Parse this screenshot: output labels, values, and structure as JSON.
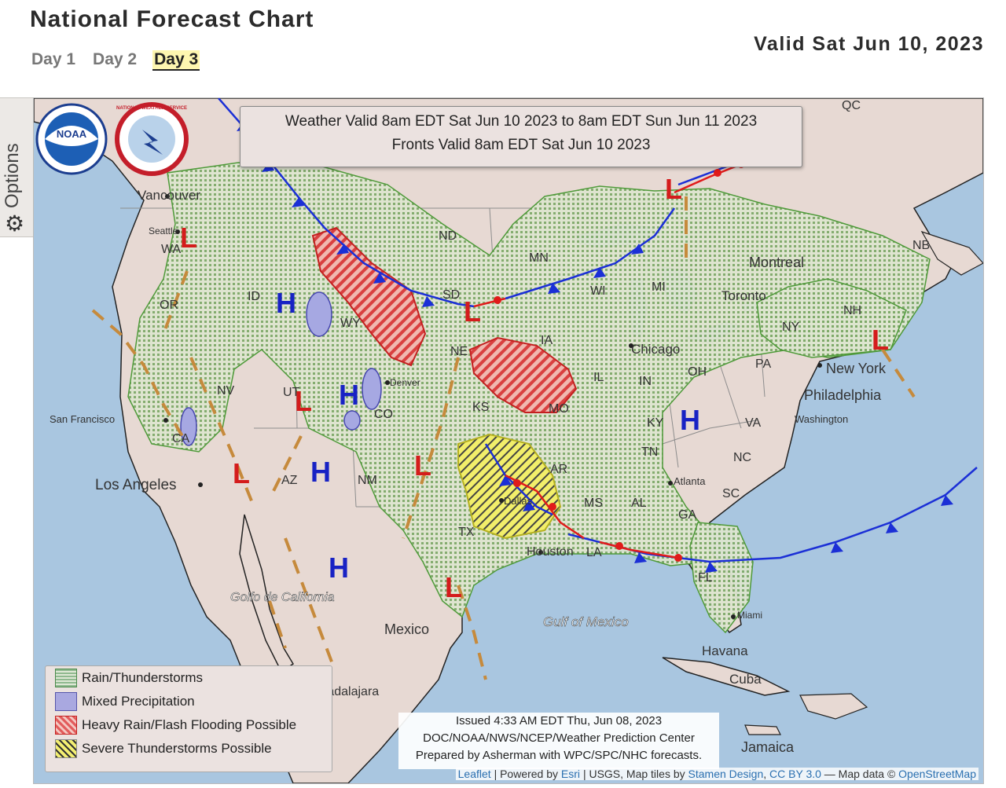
{
  "header": {
    "title": "National Forecast Chart",
    "valid_date": "Valid Sat Jun 10, 2023",
    "tabs": [
      {
        "label": "Day 1",
        "active": false
      },
      {
        "label": "Day 2",
        "active": false
      },
      {
        "label": "Day 3",
        "active": true
      }
    ]
  },
  "options": {
    "label": "Options",
    "icon": "gear-icon"
  },
  "map": {
    "valid_box": {
      "line1": "Weather Valid 8am EDT Sat Jun 10 2023 to 8am EDT Sun Jun 11 2023",
      "line2": "Fronts Valid 8am EDT Sat Jun 10 2023"
    },
    "places": {
      "vancouver": "Vancouver",
      "seattle": "Seattle",
      "wa": "WA",
      "or": "OR",
      "id": "ID",
      "nv": "NV",
      "ut": "UT",
      "az": "AZ",
      "nm": "NM",
      "co": "CO",
      "wy": "WY",
      "nd": "ND",
      "sd": "SD",
      "ne": "NE",
      "ks": "KS",
      "mn": "MN",
      "ia": "IA",
      "mo": "MO",
      "ar": "AR",
      "tx": "TX",
      "wi": "WI",
      "mi": "MI",
      "il": "IL",
      "in": "IN",
      "oh": "OH",
      "ky": "KY",
      "tn": "TN",
      "ms": "MS",
      "al": "AL",
      "ga": "GA",
      "sc": "SC",
      "nc": "NC",
      "va": "VA",
      "pa": "PA",
      "ny": "NY",
      "nh": "NH",
      "nb": "NB",
      "qc": "QC",
      "montreal": "Montreal",
      "toronto": "Toronto",
      "chicago": "Chicago",
      "new_york": "New York",
      "philadelphia": "Philadelphia",
      "washington": "Washington",
      "denver": "Denver",
      "dallas": "Dallas",
      "houston": "Houston",
      "atlanta": "Atlanta",
      "miami": "Miami",
      "havana": "Havana",
      "cuba": "Cuba",
      "jamaica": "Jamaica",
      "mexico": "Mexico",
      "guadalajara": "Guadalajara",
      "san_francisco": "San Francisco",
      "los_angeles": "Los Angeles",
      "ca": "CA",
      "gulf_of_mexico": "Gulf of Mexico",
      "golfo_de_california": "Golfo de California",
      "la": "LA",
      "fl": "FL"
    },
    "pressure_high": "H",
    "pressure_low": "L"
  },
  "legend": {
    "items": [
      {
        "label": "Rain/Thunderstorms",
        "swatch": "rain"
      },
      {
        "label": "Mixed Precipitation",
        "swatch": "mixed"
      },
      {
        "label": "Heavy Rain/Flash Flooding Possible",
        "swatch": "heavy"
      },
      {
        "label": "Severe Thunderstorms Possible",
        "swatch": "severe"
      }
    ]
  },
  "issued": {
    "line1": "Issued 4:33 AM EDT Thu, Jun 08, 2023",
    "line2": "DOC/NOAA/NWS/NCEP/Weather Prediction Center",
    "line3": "Prepared by Asherman with WPC/SPC/NHC forecasts."
  },
  "attribution": {
    "leaflet": "Leaflet",
    "powered": "| Powered by",
    "esri": "Esri",
    "usgs": "| USGS, Map tiles by",
    "stamen": "Stamen Design",
    "ccby": "CC BY 3.0",
    "mapdata": "— Map data ©",
    "osm": "OpenStreetMap"
  },
  "logos": {
    "noaa": "NOAA",
    "nws": "NATIONAL WEATHER SERVICE"
  },
  "colors": {
    "ocean": "#a9c6e0",
    "land": "#e7d9d3",
    "rain_fill": "#b8cc9e",
    "rain_edge": "#4f9a3a",
    "mixed": "#a6a8e2",
    "heavy": "#e05a5a",
    "severe": "#f2ee6a",
    "cold_front": "#1b2fd6",
    "warm_front": "#e01b1b",
    "trough": "#c68a3c",
    "high": "#1822c4",
    "low": "#d41c1c"
  }
}
